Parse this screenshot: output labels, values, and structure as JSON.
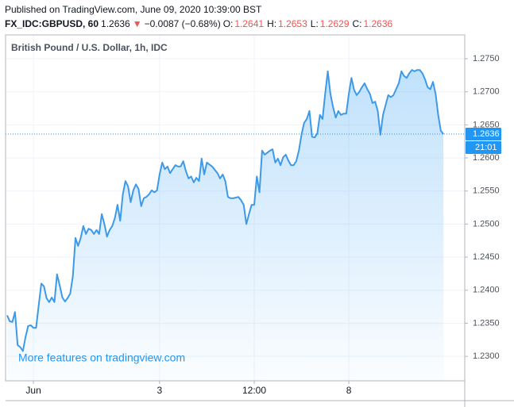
{
  "header": {
    "published": "Published on TradingView.com, June 09, 2020 10:39:00 BST",
    "symbol": "FX_IDC:GBPUSD, 60",
    "price": "1.2636",
    "direction": "▼",
    "change": "−0.0087 (−0.68%)",
    "ohlc": [
      {
        "label": "O:",
        "value": "1.2641"
      },
      {
        "label": "H:",
        "value": "1.2653"
      },
      {
        "label": "L:",
        "value": "1.2629"
      },
      {
        "label": "C:",
        "value": "1.2636"
      }
    ]
  },
  "chart_data": {
    "type": "area",
    "title": "British Pound / U.S. Dollar, 1h, IDC",
    "watermark": "More features on tradingview.com",
    "color": "#3d9ae8",
    "grid": true,
    "x": [
      -10,
      -9,
      -8,
      -7,
      -6,
      -5,
      -4,
      -3,
      -2,
      -1,
      0,
      1,
      2,
      3,
      4,
      5,
      6,
      7,
      8,
      9,
      10,
      11,
      12,
      13,
      14,
      15,
      16,
      17,
      18,
      19,
      20,
      21,
      22,
      23,
      24,
      25,
      26,
      27,
      28,
      29,
      30,
      31,
      32,
      33,
      34,
      35,
      36,
      37,
      38,
      39,
      40,
      41,
      42,
      43,
      44,
      45,
      46,
      47,
      48,
      49,
      50,
      51,
      52,
      53,
      54,
      55,
      56,
      57,
      58,
      59,
      60,
      61,
      62,
      63,
      64,
      65,
      66,
      67,
      68,
      69,
      70,
      71,
      72,
      73,
      74,
      75,
      76,
      77,
      78,
      79,
      80,
      81,
      82,
      83,
      84,
      85,
      86,
      87,
      88,
      89,
      90,
      91,
      92,
      93,
      94,
      95,
      96,
      97,
      98,
      99,
      100,
      101,
      102,
      103,
      104,
      105,
      106,
      107,
      108,
      109,
      110,
      111,
      112,
      113,
      114,
      115,
      116,
      117,
      118,
      119,
      120,
      121,
      122,
      123,
      124,
      125,
      126,
      127,
      128,
      129,
      130,
      131,
      132,
      133,
      134,
      135,
      136,
      137,
      138,
      139,
      140,
      141,
      142,
      143,
      144,
      145,
      146,
      147,
      148,
      149,
      150,
      151,
      152,
      153,
      154,
      155,
      156
    ],
    "values": [
      1.2362,
      1.2353,
      1.2352,
      1.2367,
      1.2317,
      1.2314,
      1.2308,
      1.2329,
      1.2346,
      1.2347,
      1.2343,
      1.2343,
      1.2377,
      1.241,
      1.2406,
      1.2388,
      1.2382,
      1.2389,
      1.2382,
      1.2424,
      1.2407,
      1.2389,
      1.2383,
      1.2388,
      1.2395,
      1.2421,
      1.2479,
      1.2467,
      1.2479,
      1.2497,
      1.2485,
      1.2493,
      1.2491,
      1.2485,
      1.2491,
      1.2485,
      1.2515,
      1.25,
      1.2481,
      1.2491,
      1.2497,
      1.2509,
      1.2529,
      1.2505,
      1.2545,
      1.2565,
      1.2557,
      1.2533,
      1.2551,
      1.256,
      1.2553,
      1.2527,
      1.2539,
      1.2541,
      1.2545,
      1.2551,
      1.2548,
      1.2551,
      1.2575,
      1.2593,
      1.2583,
      1.2587,
      1.2577,
      1.2583,
      1.2589,
      1.2587,
      1.2587,
      1.2595,
      1.258,
      1.2569,
      1.2572,
      1.2563,
      1.257,
      1.2565,
      1.2599,
      1.2575,
      1.2593,
      1.259,
      1.2587,
      1.2582,
      1.2577,
      1.2569,
      1.2575,
      1.2565,
      1.2541,
      1.2539,
      1.2539,
      1.254,
      1.2541,
      1.2536,
      1.2529,
      1.25,
      1.2515,
      1.2529,
      1.2529,
      1.2572,
      1.2548,
      1.2611,
      1.2605,
      1.2608,
      1.2611,
      1.2613,
      1.2593,
      1.2599,
      1.2589,
      1.2601,
      1.2605,
      1.2596,
      1.2589,
      1.2589,
      1.2595,
      1.2611,
      1.2635,
      1.2653,
      1.2659,
      1.2671,
      1.2632,
      1.2631,
      1.2637,
      1.2665,
      1.2659,
      1.2697,
      1.2731,
      1.2697,
      1.2677,
      1.2661,
      1.2671,
      1.2665,
      1.2667,
      1.2667,
      1.2697,
      1.2721,
      1.2703,
      1.2695,
      1.27,
      1.2707,
      1.2713,
      1.2704,
      1.2697,
      1.2683,
      1.2685,
      1.2671,
      1.2635,
      1.2665,
      1.268,
      1.2695,
      1.2692,
      1.2695,
      1.2704,
      1.2713,
      1.2731,
      1.2724,
      1.2721,
      1.2728,
      1.2733,
      1.2731,
      1.2733,
      1.2733,
      1.2728,
      1.2719,
      1.2707,
      1.2704,
      1.2715,
      1.2697,
      1.2665,
      1.2641,
      1.2636
    ],
    "xlim": [
      -10.6,
      164.1
    ],
    "xticks": [
      {
        "value": 0,
        "label": "Jun"
      },
      {
        "value": 48,
        "label": "3"
      },
      {
        "value": 84,
        "label": "12:00"
      },
      {
        "value": 120,
        "label": "8"
      }
    ],
    "ylim": [
      1.2263,
      1.2786
    ],
    "yticks": [
      {
        "value": 1.23,
        "label": "1.2300"
      },
      {
        "value": 1.235,
        "label": "1.2350"
      },
      {
        "value": 1.24,
        "label": "1.2400"
      },
      {
        "value": 1.245,
        "label": "1.2450"
      },
      {
        "value": 1.25,
        "label": "1.2500"
      },
      {
        "value": 1.255,
        "label": "1.2550"
      },
      {
        "value": 1.26,
        "label": "1.2600"
      },
      {
        "value": 1.265,
        "label": "1.2650"
      },
      {
        "value": 1.27,
        "label": "1.2700"
      },
      {
        "value": 1.275,
        "label": "1.2750"
      }
    ],
    "last_price": {
      "value": 1.2636,
      "label": "1.2636"
    },
    "countdown": "21:01"
  }
}
